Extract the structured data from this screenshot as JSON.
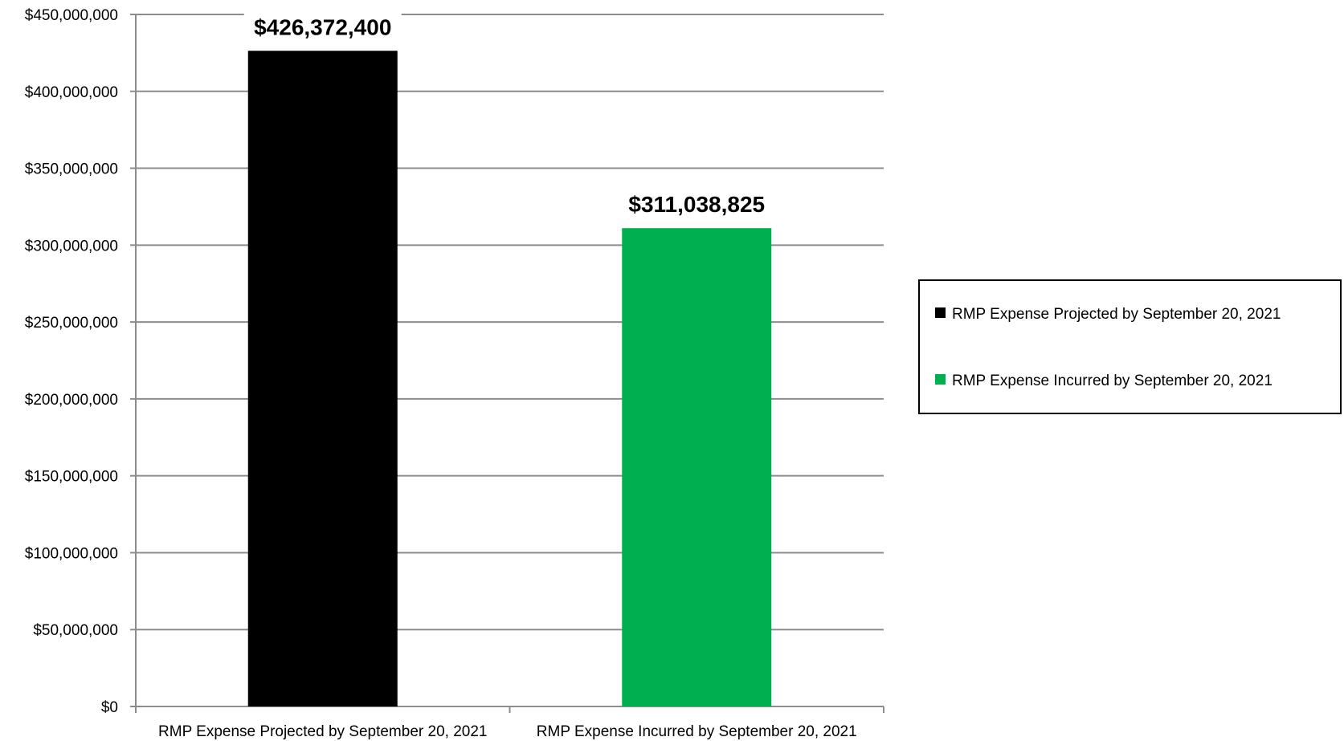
{
  "chart_data": {
    "type": "bar",
    "categories": [
      "RMP Expense Projected by September 20, 2021",
      "RMP Expense Incurred by September 20, 2021"
    ],
    "values": [
      426372400,
      311038825
    ],
    "data_labels": [
      "$426,372,400",
      "$311,038,825"
    ],
    "colors": [
      "#000000",
      "#00b050"
    ],
    "ylim": [
      0,
      450000000
    ],
    "y_ticks": [
      0,
      50000000,
      100000000,
      150000000,
      200000000,
      250000000,
      300000000,
      350000000,
      400000000,
      450000000
    ],
    "y_tick_labels": [
      "$0",
      "$50,000,000",
      "$100,000,000",
      "$150,000,000",
      "$200,000,000",
      "$250,000,000",
      "$300,000,000",
      "$350,000,000",
      "$400,000,000",
      "$450,000,000"
    ],
    "grid": true,
    "legend_position": "right",
    "legend": [
      {
        "label": "RMP Expense Projected by September 20, 2021",
        "color": "#000000"
      },
      {
        "label": "RMP Expense Incurred by September 20, 2021",
        "color": "#00b050"
      }
    ],
    "gridline_color": "#8c8c8c"
  }
}
